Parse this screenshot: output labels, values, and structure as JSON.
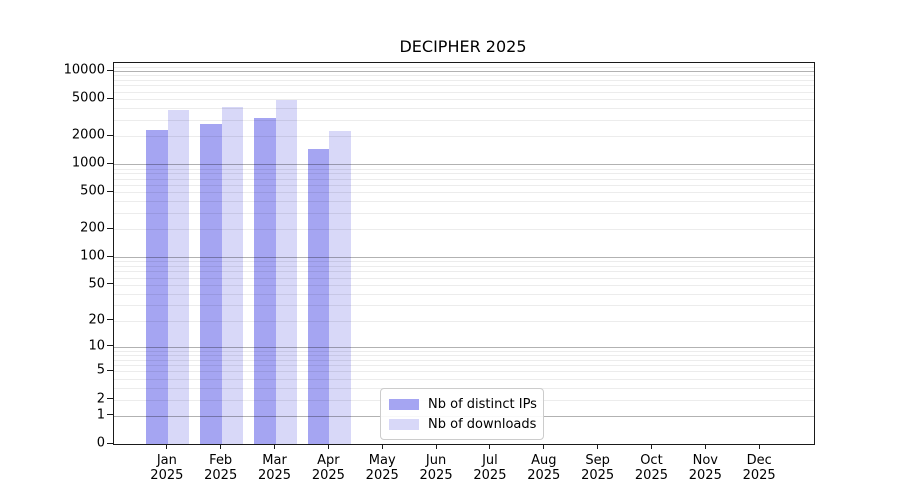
{
  "chart_data": {
    "type": "bar",
    "title": "DECIPHER 2025",
    "categories": [
      "Jan",
      "Feb",
      "Mar",
      "Apr",
      "May",
      "Jun",
      "Jul",
      "Aug",
      "Sep",
      "Oct",
      "Nov",
      "Dec"
    ],
    "x_year_label": "2025",
    "series": [
      {
        "name": "Nb of distinct IPs",
        "color": "#a5a5f2",
        "values": [
          2350,
          2700,
          3150,
          1450,
          null,
          null,
          null,
          null,
          null,
          null,
          null,
          null
        ]
      },
      {
        "name": "Nb of downloads",
        "color": "#d8d8f8",
        "values": [
          3800,
          4150,
          4950,
          2280,
          null,
          null,
          null,
          null,
          null,
          null,
          null,
          null
        ]
      }
    ],
    "y_scale": "log1p",
    "y_ticks": [
      0,
      1,
      2,
      5,
      10,
      20,
      50,
      100,
      200,
      500,
      1000,
      2000,
      5000,
      10000
    ],
    "y_axis_top": 12200,
    "grid": "both",
    "legend_position": "lower-center-inside"
  },
  "colors": {
    "background": "#ffffff",
    "spine": "#1a1a1a",
    "major_grid": "rgba(0,0,0,0.30)",
    "minor_grid": "rgba(0,0,0,0.075)",
    "text": "#000000",
    "legend_border": "#cccccc"
  }
}
